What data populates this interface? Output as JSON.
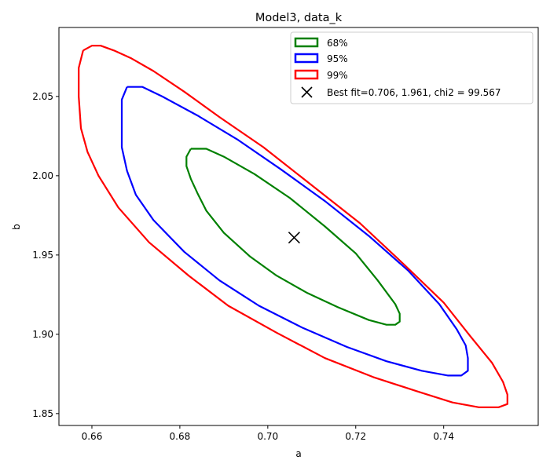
{
  "chart_data": {
    "type": "contour",
    "title": "Model3, data_k",
    "xlabel": "a",
    "ylabel": "b",
    "xlim": [
      0.6525,
      0.7615
    ],
    "ylim": [
      1.8425,
      2.0935
    ],
    "xticks": [
      0.66,
      0.68,
      0.7,
      0.72,
      0.74
    ],
    "xtick_labels": [
      "0.66",
      "0.68",
      "0.70",
      "0.72",
      "0.74"
    ],
    "yticks": [
      1.85,
      1.9,
      1.95,
      2.0,
      2.05
    ],
    "ytick_labels": [
      "1.85",
      "1.90",
      "1.95",
      "2.00",
      "2.05"
    ],
    "grid": false,
    "legend_position": "top-right",
    "series": [
      {
        "name": "68%",
        "color": "#008000",
        "points": [
          [
            0.6825,
            2.017
          ],
          [
            0.686,
            2.017
          ],
          [
            0.69,
            2.012
          ],
          [
            0.697,
            2.001
          ],
          [
            0.705,
            1.986
          ],
          [
            0.713,
            1.968
          ],
          [
            0.72,
            1.951
          ],
          [
            0.725,
            1.934
          ],
          [
            0.729,
            1.919
          ],
          [
            0.73,
            1.913
          ],
          [
            0.73,
            1.908
          ],
          [
            0.729,
            1.906
          ],
          [
            0.727,
            1.906
          ],
          [
            0.723,
            1.909
          ],
          [
            0.716,
            1.917
          ],
          [
            0.709,
            1.926
          ],
          [
            0.702,
            1.937
          ],
          [
            0.696,
            1.949
          ],
          [
            0.69,
            1.964
          ],
          [
            0.686,
            1.978
          ],
          [
            0.684,
            1.989
          ],
          [
            0.6825,
            1.998
          ],
          [
            0.6815,
            2.006
          ],
          [
            0.6815,
            2.012
          ],
          [
            0.6825,
            2.017
          ]
        ]
      },
      {
        "name": "95%",
        "color": "#0000ff",
        "points": [
          [
            0.668,
            2.056
          ],
          [
            0.6715,
            2.056
          ],
          [
            0.676,
            2.05
          ],
          [
            0.684,
            2.038
          ],
          [
            0.693,
            2.023
          ],
          [
            0.703,
            2.004
          ],
          [
            0.713,
            1.984
          ],
          [
            0.723,
            1.962
          ],
          [
            0.732,
            1.94
          ],
          [
            0.739,
            1.919
          ],
          [
            0.743,
            1.903
          ],
          [
            0.745,
            1.893
          ],
          [
            0.7455,
            1.885
          ],
          [
            0.7455,
            1.877
          ],
          [
            0.744,
            1.874
          ],
          [
            0.741,
            1.874
          ],
          [
            0.735,
            1.877
          ],
          [
            0.727,
            1.883
          ],
          [
            0.718,
            1.892
          ],
          [
            0.708,
            1.904
          ],
          [
            0.698,
            1.918
          ],
          [
            0.689,
            1.934
          ],
          [
            0.681,
            1.952
          ],
          [
            0.674,
            1.972
          ],
          [
            0.67,
            1.988
          ],
          [
            0.668,
            2.003
          ],
          [
            0.6668,
            2.018
          ],
          [
            0.6668,
            2.035
          ],
          [
            0.6668,
            2.048
          ],
          [
            0.668,
            2.056
          ]
        ]
      },
      {
        "name": "99%",
        "color": "#ff0000",
        "points": [
          [
            0.658,
            2.079
          ],
          [
            0.66,
            2.082
          ],
          [
            0.662,
            2.082
          ],
          [
            0.665,
            2.079
          ],
          [
            0.669,
            2.074
          ],
          [
            0.674,
            2.066
          ],
          [
            0.681,
            2.053
          ],
          [
            0.689,
            2.037
          ],
          [
            0.699,
            2.018
          ],
          [
            0.71,
            1.994
          ],
          [
            0.721,
            1.97
          ],
          [
            0.731,
            1.944
          ],
          [
            0.74,
            1.92
          ],
          [
            0.746,
            1.899
          ],
          [
            0.751,
            1.882
          ],
          [
            0.7535,
            1.87
          ],
          [
            0.7545,
            1.862
          ],
          [
            0.7545,
            1.856
          ],
          [
            0.7525,
            1.854
          ],
          [
            0.748,
            1.854
          ],
          [
            0.742,
            1.857
          ],
          [
            0.734,
            1.864
          ],
          [
            0.724,
            1.873
          ],
          [
            0.713,
            1.885
          ],
          [
            0.702,
            1.901
          ],
          [
            0.691,
            1.918
          ],
          [
            0.682,
            1.937
          ],
          [
            0.673,
            1.958
          ],
          [
            0.666,
            1.98
          ],
          [
            0.6615,
            2.0
          ],
          [
            0.659,
            2.015
          ],
          [
            0.6575,
            2.03
          ],
          [
            0.657,
            2.05
          ],
          [
            0.657,
            2.068
          ],
          [
            0.658,
            2.079
          ]
        ]
      }
    ],
    "best_fit": {
      "name": "Best fit=0.706, 1.961, chi2 = 99.567",
      "x": 0.706,
      "y": 1.961,
      "marker": "x",
      "color": "#000000"
    }
  }
}
